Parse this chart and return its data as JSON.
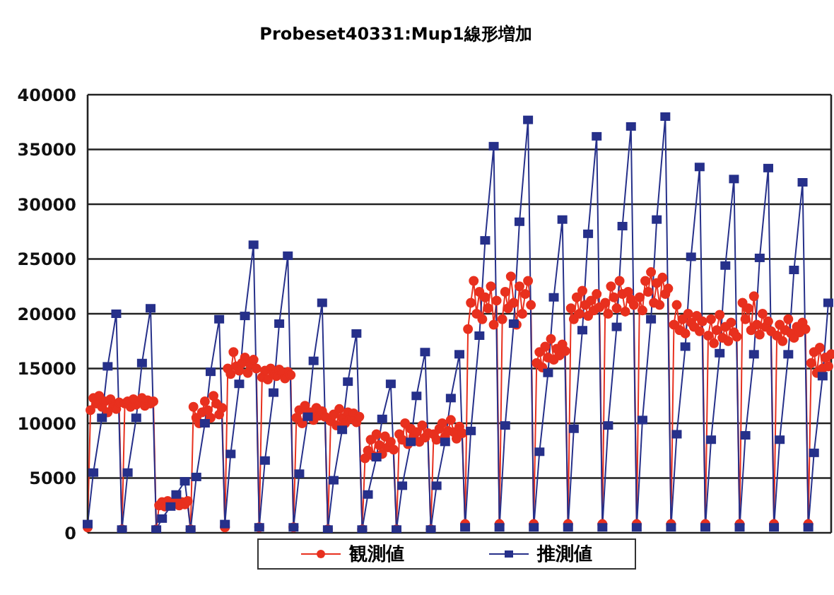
{
  "chart_data": {
    "type": "line",
    "title": "Probeset40331:Mup1線形増加",
    "categories": [
      null,
      null,
      null,
      null,
      null,
      null,
      null,
      null,
      null,
      null,
      null,
      null,
      null,
      null,
      null,
      null,
      null,
      null,
      null,
      null,
      null,
      null,
      null,
      null,
      null,
      null,
      null,
      null,
      null,
      null,
      null,
      null,
      null,
      null,
      null,
      null,
      null,
      null,
      null,
      null,
      null,
      null,
      null,
      null,
      null,
      null,
      null,
      null,
      null,
      null,
      null,
      null,
      null,
      null,
      null,
      null,
      null,
      null,
      null,
      null,
      null,
      null,
      null,
      null,
      null,
      null,
      null,
      null,
      null,
      null,
      null,
      null,
      null,
      null,
      null,
      null,
      null,
      null,
      null,
      null,
      null,
      null,
      null,
      null,
      null,
      null,
      null,
      null,
      null,
      null,
      null,
      null,
      null,
      null,
      null,
      null,
      null,
      null,
      null,
      null,
      null,
      null,
      null,
      null,
      null,
      null,
      null,
      null,
      null,
      null,
      null,
      null,
      null,
      null,
      null,
      null,
      null,
      null,
      null,
      null,
      null,
      null,
      null,
      null,
      null,
      null,
      null,
      null,
      null,
      null,
      null,
      null,
      null,
      null,
      null,
      null,
      null,
      null,
      null,
      null,
      null,
      null,
      null,
      null,
      null,
      null,
      null,
      null,
      null,
      null,
      null,
      null,
      null,
      null,
      null,
      null,
      null,
      null,
      null,
      null,
      null,
      null,
      null,
      null,
      null,
      null,
      null,
      null,
      null,
      null,
      null,
      null,
      null,
      null,
      null,
      null,
      null,
      null,
      null,
      null,
      null,
      null,
      null,
      null,
      null,
      null,
      null,
      null,
      null,
      null,
      null,
      null,
      null,
      null,
      null,
      null,
      null,
      null,
      null,
      null,
      null,
      null,
      null,
      null,
      null,
      null,
      null,
      null,
      null,
      null,
      null,
      null,
      null,
      null,
      null,
      null,
      null,
      null,
      null,
      null,
      null,
      null,
      null,
      null,
      null,
      null,
      null,
      null,
      null,
      null,
      null,
      null,
      null,
      null,
      null,
      null,
      null,
      null,
      null,
      null,
      null,
      null,
      null,
      null,
      null,
      null,
      null,
      null,
      null,
      null,
      null,
      null,
      null,
      null,
      null,
      null,
      null,
      null,
      null,
      null,
      null
    ],
    "series": [
      {
        "name": "観測値",
        "color": "#e8301e",
        "marker": "circle",
        "values": [
          500,
          11200,
          12300,
          11800,
          12500,
          11500,
          12000,
          11000,
          12200,
          11600,
          11300,
          11900,
          300,
          11800,
          12000,
          11500,
          12200,
          11700,
          11900,
          12300,
          11600,
          12100,
          11800,
          12000,
          300,
          2500,
          2800,
          2400,
          2900,
          2600,
          2700,
          3000,
          2500,
          2800,
          2600,
          2900,
          300,
          11500,
          10500,
          10000,
          11000,
          12000,
          11200,
          10500,
          12500,
          11800,
          10800,
          11400,
          500,
          15000,
          14500,
          16500,
          15200,
          14800,
          15500,
          16000,
          14600,
          15400,
          15800,
          15000,
          500,
          14200,
          14800,
          14000,
          15000,
          14500,
          14300,
          14900,
          14600,
          14100,
          14700,
          14400,
          500,
          10500,
          11200,
          10000,
          11600,
          10800,
          11000,
          10300,
          11400,
          10700,
          11100,
          10600,
          300,
          10200,
          10800,
          9800,
          11300,
          10500,
          10000,
          11000,
          10400,
          10900,
          10100,
          10600,
          300,
          6800,
          7500,
          8500,
          7000,
          9000,
          8000,
          7200,
          8800,
          7800,
          8300,
          7600,
          300,
          9000,
          8500,
          10000,
          8100,
          9500,
          8800,
          9200,
          8300,
          9800,
          8700,
          9100,
          300,
          9000,
          8500,
          9500,
          10000,
          8800,
          9300,
          10300,
          9200,
          8600,
          9700,
          9100,
          800,
          18600,
          21000,
          23000,
          20000,
          22000,
          19500,
          21500,
          20500,
          22500,
          19000,
          21200,
          800,
          19500,
          22000,
          20500,
          23400,
          21000,
          19000,
          22500,
          20000,
          21800,
          23000,
          20800,
          800,
          15500,
          16500,
          15100,
          17000,
          16000,
          17700,
          15800,
          16800,
          16200,
          17200,
          16600,
          800,
          20500,
          19500,
          21500,
          20000,
          22100,
          20800,
          19800,
          21200,
          20300,
          21800,
          20600,
          800,
          21000,
          20000,
          22500,
          21500,
          20500,
          23000,
          21800,
          20200,
          22000,
          21300,
          20800,
          800,
          21500,
          20300,
          23000,
          22000,
          23800,
          21000,
          22800,
          20800,
          23300,
          21800,
          22300,
          800,
          19000,
          20800,
          18500,
          19500,
          18200,
          20000,
          19200,
          18800,
          19800,
          18400,
          19300,
          800,
          18000,
          19500,
          17300,
          18500,
          19900,
          17800,
          18800,
          17500,
          19200,
          18300,
          17900,
          800,
          21000,
          19500,
          20500,
          18500,
          21600,
          19000,
          18100,
          20000,
          18800,
          19300,
          18400,
          800,
          18000,
          19000,
          17500,
          18500,
          19500,
          18200,
          17800,
          18800,
          18300,
          19200,
          18600,
          800,
          15500,
          16500,
          14600,
          16900,
          15000,
          16000,
          15200,
          16300
        ]
      },
      {
        "name": "推測値",
        "color": "#26308a",
        "marker": "square",
        "values": [
          800,
          null,
          5500,
          null,
          null,
          10500,
          null,
          15200,
          null,
          null,
          20000,
          null,
          300,
          null,
          5500,
          null,
          null,
          10500,
          null,
          15500,
          null,
          null,
          20500,
          null,
          300,
          null,
          1300,
          null,
          null,
          2400,
          null,
          3500,
          null,
          null,
          4700,
          null,
          300,
          null,
          5100,
          null,
          null,
          10000,
          null,
          14700,
          null,
          null,
          19500,
          null,
          800,
          null,
          7200,
          null,
          null,
          13600,
          null,
          19800,
          null,
          null,
          26300,
          null,
          500,
          null,
          6600,
          null,
          null,
          12800,
          null,
          19100,
          null,
          null,
          25300,
          null,
          500,
          null,
          5400,
          null,
          null,
          10600,
          null,
          15700,
          null,
          null,
          21000,
          null,
          300,
          null,
          4800,
          null,
          null,
          9400,
          null,
          13800,
          null,
          null,
          18200,
          null,
          300,
          null,
          3500,
          null,
          null,
          6900,
          null,
          10400,
          null,
          null,
          13600,
          null,
          300,
          null,
          4300,
          null,
          null,
          8300,
          null,
          12500,
          null,
          null,
          16500,
          null,
          300,
          null,
          4300,
          null,
          null,
          8300,
          null,
          12300,
          null,
          null,
          16300,
          null,
          500,
          null,
          9300,
          null,
          null,
          18000,
          null,
          26700,
          null,
          null,
          35300,
          null,
          500,
          null,
          9800,
          null,
          null,
          19100,
          null,
          28400,
          null,
          null,
          37700,
          null,
          500,
          null,
          7400,
          null,
          null,
          14600,
          null,
          21500,
          null,
          null,
          28600,
          null,
          500,
          null,
          9500,
          null,
          null,
          18500,
          null,
          27300,
          null,
          null,
          36200,
          null,
          500,
          null,
          9800,
          null,
          null,
          18800,
          null,
          28000,
          null,
          null,
          37100,
          null,
          500,
          null,
          10300,
          null,
          null,
          19500,
          null,
          28600,
          null,
          null,
          38000,
          null,
          500,
          null,
          9000,
          null,
          null,
          17000,
          null,
          25200,
          null,
          null,
          33400,
          null,
          500,
          null,
          8500,
          null,
          null,
          16400,
          null,
          24400,
          null,
          null,
          32300,
          null,
          500,
          null,
          8900,
          null,
          null,
          16300,
          null,
          25100,
          null,
          null,
          33300,
          null,
          500,
          null,
          8500,
          null,
          null,
          16300,
          null,
          24000,
          null,
          null,
          32000,
          null,
          500,
          null,
          7300,
          null,
          null,
          14300,
          null,
          21000,
          null
        ]
      }
    ],
    "ylim": [
      0,
      40000
    ],
    "yticks": [
      0,
      5000,
      10000,
      15000,
      20000,
      25000,
      30000,
      35000,
      40000
    ],
    "tick_labels": "y",
    "grid": true,
    "legend": "bottom"
  }
}
